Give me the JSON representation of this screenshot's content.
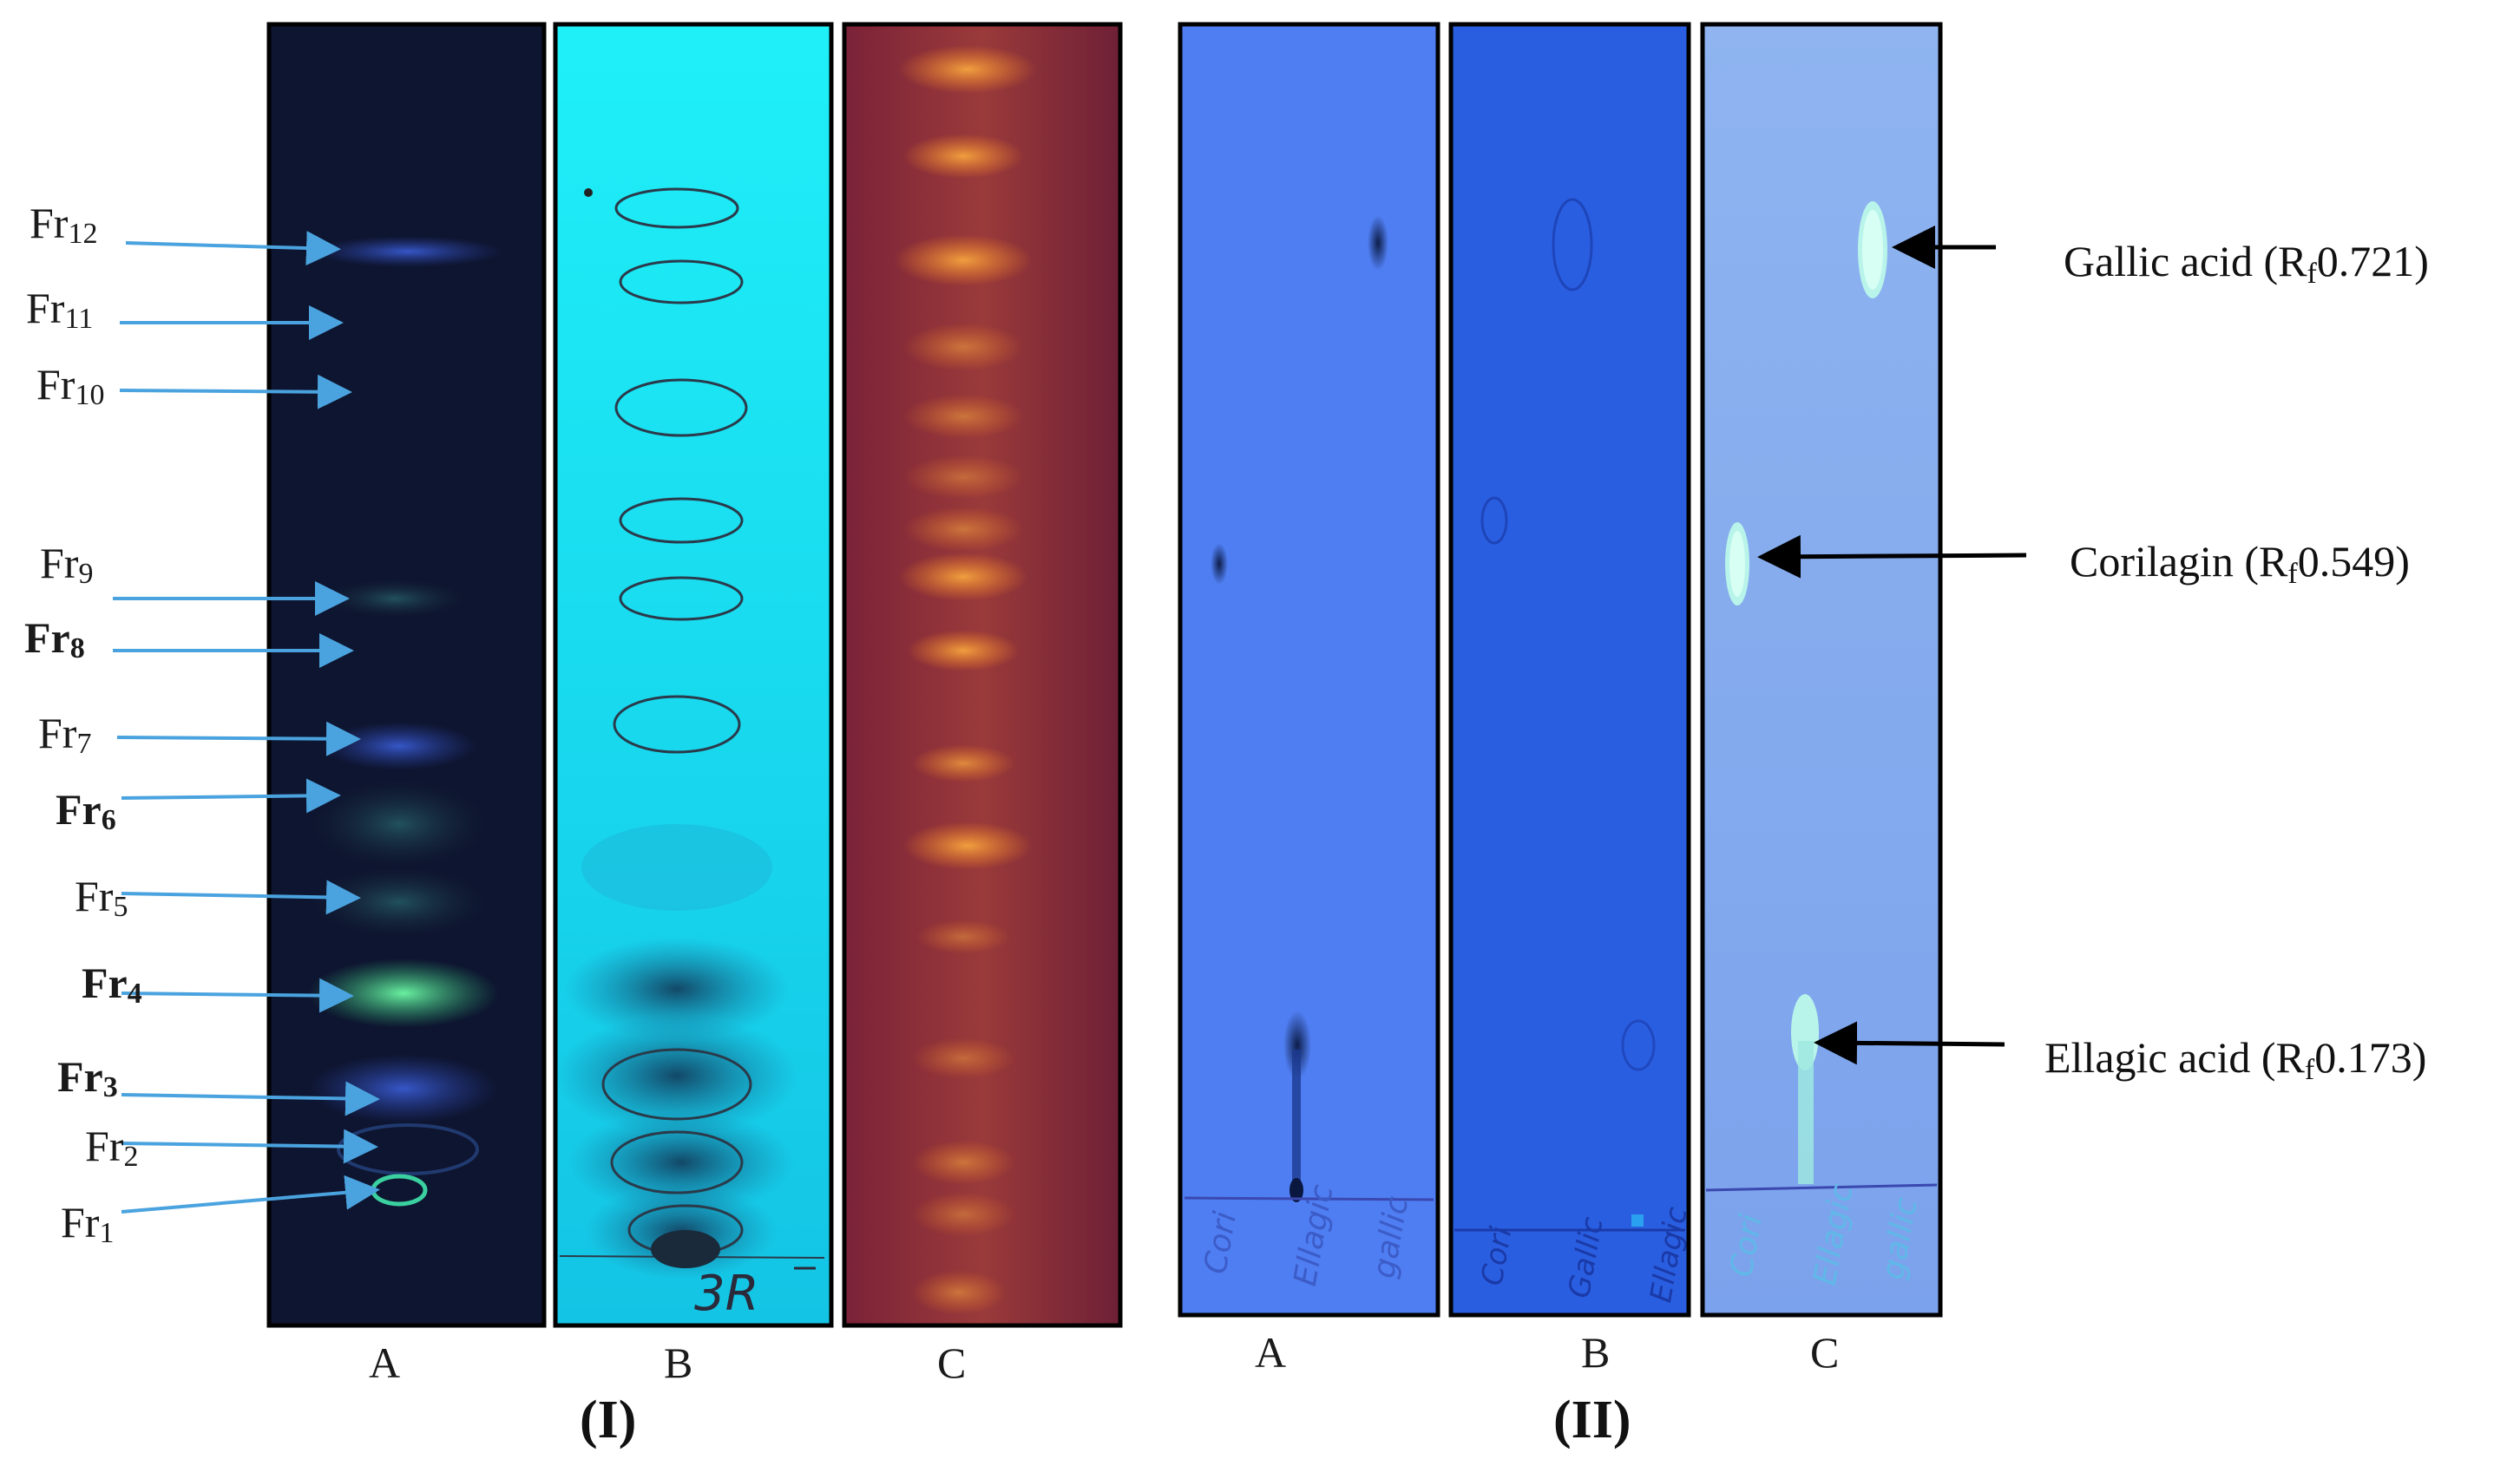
{
  "panel_I": {
    "label": "(I)",
    "fraction_prefix": "Fr",
    "fractions": [
      {
        "num": "12",
        "bold": false
      },
      {
        "num": "11",
        "bold": false
      },
      {
        "num": "10",
        "bold": false
      },
      {
        "num": "9",
        "bold": false
      },
      {
        "num": "8",
        "bold": true
      },
      {
        "num": "7",
        "bold": false
      },
      {
        "num": "6",
        "bold": true
      },
      {
        "num": "5",
        "bold": false
      },
      {
        "num": "4",
        "bold": true
      },
      {
        "num": "3",
        "bold": true
      },
      {
        "num": "2",
        "bold": false
      },
      {
        "num": "1",
        "bold": false
      }
    ],
    "lanes": [
      "A",
      "B",
      "C"
    ],
    "handwritten_plate_mark": "3R"
  },
  "panel_II": {
    "label": "(II)",
    "lanes": [
      "A",
      "B",
      "C"
    ],
    "spot_labels": {
      "plate_A": [
        "Cori",
        "Ellagic",
        "gallic"
      ],
      "plate_B": [
        "Cori",
        "Gallic",
        "Ellagic"
      ],
      "plate_C": [
        "Cori",
        "Ellagic",
        "gallic"
      ]
    },
    "compounds": [
      {
        "name": "Gallic acid",
        "rf_prefix": "(R",
        "rf_sub": "f",
        "rf_value": "0.721)"
      },
      {
        "name": "Corilagin",
        "rf_prefix": "(R",
        "rf_sub": "f",
        "rf_value": "0.549)"
      },
      {
        "name": "Ellagic acid",
        "rf_prefix": "(R",
        "rf_sub": "f",
        "rf_value": "0.173)"
      }
    ]
  },
  "colors": {
    "arrow_blue": "#4aa3df",
    "arrow_black": "#000000",
    "plate_I_A_bg": "#0e1530",
    "plate_I_B_bg": "#19e6f2",
    "plate_I_C_bg": "#8a2a3a",
    "plate_II_A_bg": "#4f7ef2",
    "plate_II_B_bg": "#2a5ee0",
    "plate_II_C_bg": "#7ea4ee"
  }
}
